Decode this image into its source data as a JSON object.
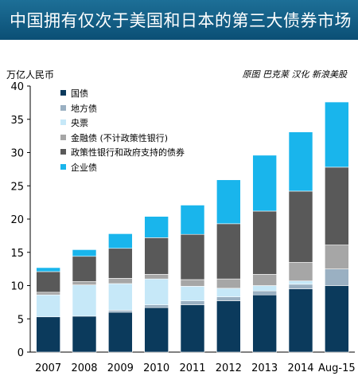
{
  "header": {
    "title": "中国拥有仅次于美国和日本的第三大债券市场"
  },
  "chart_data": {
    "type": "bar",
    "stacked": true,
    "unit_label": "万亿人民币",
    "source": "原图 巴克莱 汉化 新浪美股",
    "categories": [
      "2007",
      "2008",
      "2009",
      "2010",
      "2011",
      "2012",
      "2013",
      "2014",
      "Aug-15"
    ],
    "ylim": [
      0,
      40
    ],
    "yticks": [
      0,
      5,
      10,
      15,
      20,
      25,
      30,
      35,
      40
    ],
    "legend_position": "top-left",
    "series": [
      {
        "name": "国债",
        "color": "#0b3a5c",
        "values": [
          5.3,
          5.4,
          6.0,
          6.7,
          7.1,
          7.7,
          8.6,
          9.5,
          10.0
        ]
      },
      {
        "name": "地方债",
        "color": "#9ab0c2",
        "values": [
          0.0,
          0.0,
          0.3,
          0.4,
          0.6,
          0.6,
          0.6,
          0.7,
          2.5
        ]
      },
      {
        "name": "央票",
        "color": "#c6e8f8",
        "values": [
          3.3,
          4.7,
          4.0,
          3.9,
          2.2,
          1.3,
          0.8,
          0.5,
          0.0
        ]
      },
      {
        "name": "金融债 (不计政策性银行)",
        "color": "#a6a6a6",
        "values": [
          0.4,
          0.5,
          0.8,
          0.7,
          1.0,
          1.4,
          1.7,
          2.8,
          3.6
        ]
      },
      {
        "name": "政策性银行和政府支持的债券",
        "color": "#595959",
        "values": [
          3.1,
          3.8,
          4.5,
          5.5,
          6.8,
          8.3,
          9.5,
          10.7,
          11.7
        ]
      },
      {
        "name": "企业债",
        "color": "#19b5ec",
        "values": [
          0.6,
          1.0,
          2.2,
          3.2,
          4.4,
          6.6,
          8.4,
          8.9,
          9.8
        ]
      }
    ]
  }
}
